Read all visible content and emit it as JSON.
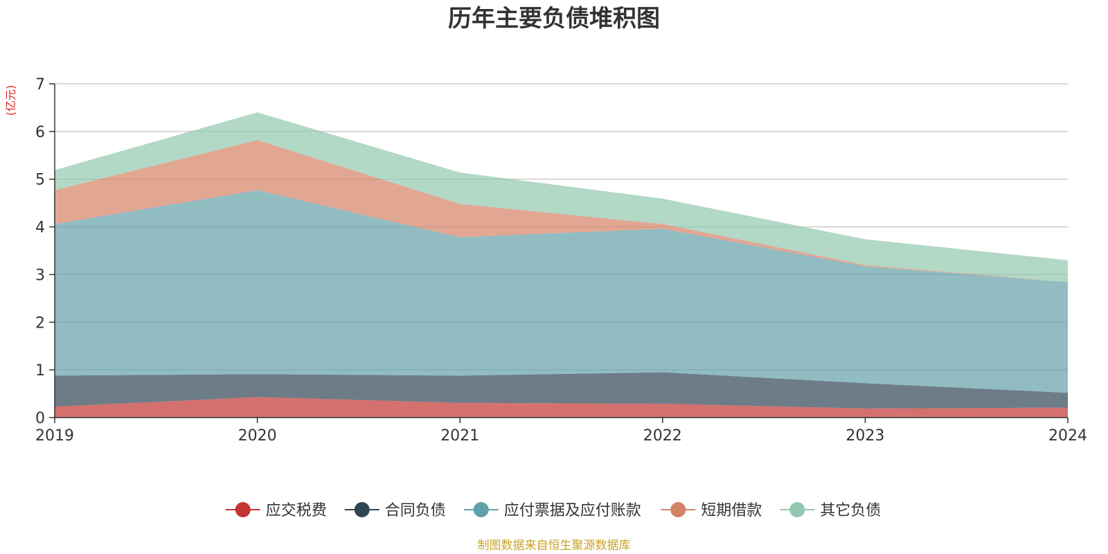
{
  "chart_data": {
    "type": "area",
    "stacked": true,
    "title": "历年主要负债堆积图",
    "unit_label": "(亿元)",
    "x": [
      "2019",
      "2020",
      "2021",
      "2022",
      "2023",
      "2024"
    ],
    "ylim": [
      0,
      7
    ],
    "yticks": [
      "0",
      "1",
      "2",
      "3",
      "4",
      "5",
      "6",
      "7"
    ],
    "grid": true,
    "legend_position": "bottom",
    "series": [
      {
        "name": "应交税费",
        "color": "#c23531",
        "values": [
          0.23,
          0.43,
          0.31,
          0.29,
          0.19,
          0.21
        ]
      },
      {
        "name": "合同负债",
        "color": "#2f4554",
        "values": [
          0.65,
          0.48,
          0.57,
          0.66,
          0.53,
          0.31
        ]
      },
      {
        "name": "应付票据及应付账款",
        "color": "#61a0a8",
        "values": [
          3.18,
          3.86,
          2.9,
          3.01,
          2.45,
          2.32
        ]
      },
      {
        "name": "短期借款",
        "color": "#d48265",
        "values": [
          0.71,
          1.05,
          0.7,
          0.1,
          0.03,
          0.0
        ]
      },
      {
        "name": "其它负债",
        "color": "#91c7ae",
        "values": [
          0.42,
          0.58,
          0.66,
          0.53,
          0.54,
          0.46
        ]
      }
    ],
    "source_note": "制图数据来自恒生聚源数据库"
  }
}
